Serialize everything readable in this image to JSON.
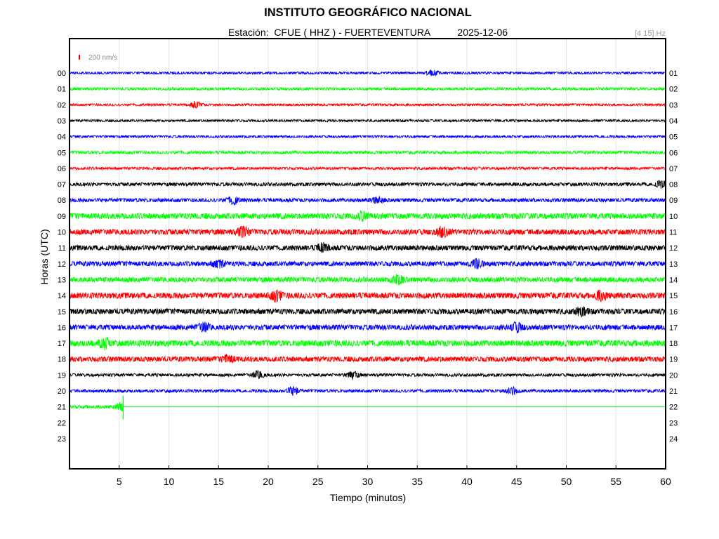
{
  "header": {
    "title": "INSTITUTO GEOGRÁFICO NACIONAL",
    "station_label": "Estación:",
    "station": "CFUE ( HHZ ) - FUERTEVENTURA",
    "date": "2025-12-06",
    "band": "[4 15] Hz"
  },
  "chart_data": {
    "type": "line",
    "title": "INSTITUTO GEOGRÁFICO NACIONAL",
    "subtitle": "Estación:  CFUE ( HHZ ) - FUERTEVENTURA        2025-12-06",
    "xlabel": "Tiempo (minutos)",
    "ylabel": "Horas (UTC)",
    "xlim": [
      0,
      60
    ],
    "x_ticks": [
      5,
      10,
      15,
      20,
      25,
      30,
      35,
      40,
      45,
      50,
      55,
      60
    ],
    "grid": "vertical",
    "scale_label": "200 nm/s",
    "left_hour_labels": [
      "00",
      "01",
      "02",
      "03",
      "04",
      "05",
      "06",
      "07",
      "08",
      "09",
      "10",
      "11",
      "12",
      "13",
      "14",
      "15",
      "16",
      "17",
      "18",
      "19",
      "20",
      "21",
      "22",
      "23"
    ],
    "right_hour_labels": [
      "01",
      "02",
      "03",
      "04",
      "05",
      "06",
      "07",
      "08",
      "09",
      "10",
      "11",
      "12",
      "13",
      "14",
      "15",
      "16",
      "17",
      "18",
      "19",
      "20",
      "21",
      "22",
      "23",
      "24"
    ],
    "trace_colors": [
      "#0000ff",
      "#00ff00",
      "#ff0000",
      "#000000"
    ],
    "series": [
      {
        "hour": "00",
        "color": "#0000ff",
        "amplitude": 0.35,
        "bursts": [
          [
            36.5,
            0.8
          ]
        ]
      },
      {
        "hour": "01",
        "color": "#00ff00",
        "amplitude": 0.4,
        "bursts": []
      },
      {
        "hour": "02",
        "color": "#ff0000",
        "amplitude": 0.35,
        "bursts": [
          [
            12.7,
            0.8
          ]
        ]
      },
      {
        "hour": "03",
        "color": "#000000",
        "amplitude": 0.35,
        "bursts": []
      },
      {
        "hour": "04",
        "color": "#0000ff",
        "amplitude": 0.35,
        "bursts": []
      },
      {
        "hour": "05",
        "color": "#00ff00",
        "amplitude": 0.45,
        "bursts": []
      },
      {
        "hour": "06",
        "color": "#ff0000",
        "amplitude": 0.4,
        "bursts": []
      },
      {
        "hour": "07",
        "color": "#000000",
        "amplitude": 0.5,
        "bursts": [
          [
            59.5,
            0.9
          ]
        ]
      },
      {
        "hour": "08",
        "color": "#0000ff",
        "amplitude": 0.55,
        "bursts": [
          [
            16.5,
            1.0
          ],
          [
            31.0,
            0.8
          ]
        ]
      },
      {
        "hour": "09",
        "color": "#00ff00",
        "amplitude": 0.85,
        "bursts": [
          [
            29.5,
            1.0
          ]
        ]
      },
      {
        "hour": "10",
        "color": "#ff0000",
        "amplitude": 0.8,
        "bursts": [
          [
            17.5,
            1.2
          ],
          [
            37.5,
            1.2
          ]
        ]
      },
      {
        "hour": "11",
        "color": "#000000",
        "amplitude": 0.75,
        "bursts": [
          [
            25.5,
            1.1
          ]
        ]
      },
      {
        "hour": "12",
        "color": "#0000ff",
        "amplitude": 0.7,
        "bursts": [
          [
            15.0,
            1.0
          ],
          [
            41.0,
            1.1
          ]
        ]
      },
      {
        "hour": "13",
        "color": "#00ff00",
        "amplitude": 0.75,
        "bursts": [
          [
            33.0,
            1.1
          ]
        ]
      },
      {
        "hour": "14",
        "color": "#ff0000",
        "amplitude": 0.85,
        "bursts": [
          [
            20.8,
            1.3
          ],
          [
            53.5,
            1.1
          ]
        ]
      },
      {
        "hour": "15",
        "color": "#000000",
        "amplitude": 0.8,
        "bursts": [
          [
            51.5,
            1.1
          ]
        ]
      },
      {
        "hour": "16",
        "color": "#0000ff",
        "amplitude": 0.75,
        "bursts": [
          [
            13.5,
            1.2
          ],
          [
            45.0,
            1.2
          ]
        ]
      },
      {
        "hour": "17",
        "color": "#00ff00",
        "amplitude": 0.9,
        "bursts": [
          [
            3.5,
            1.3
          ]
        ]
      },
      {
        "hour": "18",
        "color": "#ff0000",
        "amplitude": 0.75,
        "bursts": [
          [
            16.0,
            1.0
          ]
        ]
      },
      {
        "hour": "19",
        "color": "#000000",
        "amplitude": 0.45,
        "bursts": [
          [
            19.0,
            1.0
          ],
          [
            28.5,
            1.0
          ]
        ]
      },
      {
        "hour": "20",
        "color": "#0000ff",
        "amplitude": 0.45,
        "bursts": [
          [
            22.5,
            1.1
          ],
          [
            44.5,
            1.0
          ]
        ]
      },
      {
        "hour": "21",
        "color": "#00ff00",
        "amplitude": 0.5,
        "bursts": [
          [
            5.3,
            1.0
          ]
        ],
        "recorded_until": 5.4
      }
    ]
  }
}
